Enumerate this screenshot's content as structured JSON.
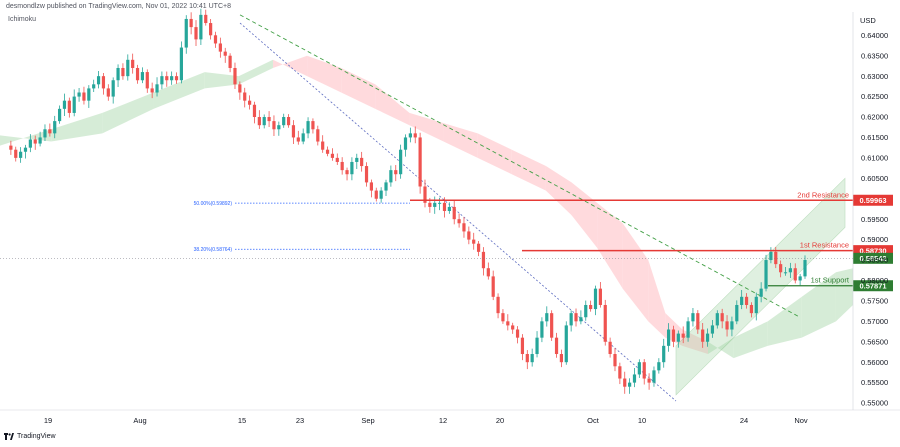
{
  "header": {
    "publisher": "desmondlzw published on TradingView.com, Nov 01, 2022 10:41 UTC+8",
    "indicator": "Ichimoku"
  },
  "footer": {
    "brand": "TradingView"
  },
  "colors": {
    "up": "#26a69a",
    "down": "#ef5350",
    "resistance": "#e53935",
    "support": "#2e7d32",
    "fib": "#2962ff",
    "cloud_bull": "#c8e6c9",
    "cloud_bear": "#ffcdd2",
    "channel": "#a5d6a7",
    "trend_green": "#43a047",
    "trend_blue": "#5c6bc0",
    "price_tag": "#2e7d32"
  },
  "chart_data": {
    "type": "candlestick",
    "symbol_currency": "USD",
    "y_axis": {
      "range": [
        0.5483,
        0.6457
      ],
      "ticks": [
        "0.64000",
        "0.63500",
        "0.63000",
        "0.62500",
        "0.62000",
        "0.61500",
        "0.61000",
        "0.60500",
        "0.59500",
        "0.59000",
        "0.58500",
        "0.58000",
        "0.57500",
        "0.57000",
        "0.56500",
        "0.56000",
        "0.55500",
        "0.55000"
      ]
    },
    "x_axis": {
      "labels": [
        "19",
        "Aug",
        "15",
        "23",
        "Sep",
        "12",
        "20",
        "Oct",
        "10",
        "24",
        "Nov"
      ]
    },
    "levels": [
      {
        "name": "2nd Resistance",
        "value": 0.59963,
        "label": "0.59963",
        "kind": "resistance"
      },
      {
        "name": "1st Resistance",
        "value": 0.5873,
        "label": "0.58730",
        "kind": "resistance"
      },
      {
        "name": "1st Support",
        "value": 0.57871,
        "label": "0.57871",
        "kind": "support"
      }
    ],
    "current_price": {
      "value": 0.58542,
      "label": "0.58542"
    },
    "fib_levels": [
      {
        "label": "50.00%(0.59892)",
        "value": 0.59892
      },
      {
        "label": "38.20%(0.58764)",
        "value": 0.58764
      }
    ],
    "price_path": [
      0.613,
      0.612,
      0.61,
      0.6115,
      0.6125,
      0.6145,
      0.6135,
      0.615,
      0.617,
      0.616,
      0.619,
      0.622,
      0.624,
      0.621,
      0.625,
      0.626,
      0.624,
      0.627,
      0.628,
      0.63,
      0.627,
      0.625,
      0.629,
      0.632,
      0.63,
      0.634,
      0.632,
      0.629,
      0.631,
      0.627,
      0.626,
      0.628,
      0.63,
      0.629,
      0.63,
      0.629,
      0.637,
      0.644,
      0.642,
      0.639,
      0.645,
      0.643,
      0.64,
      0.638,
      0.636,
      0.635,
      0.632,
      0.628,
      0.626,
      0.624,
      0.623,
      0.62,
      0.618,
      0.62,
      0.619,
      0.617,
      0.618,
      0.62,
      0.618,
      0.615,
      0.614,
      0.616,
      0.619,
      0.617,
      0.614,
      0.612,
      0.611,
      0.61,
      0.609,
      0.607,
      0.606,
      0.609,
      0.61,
      0.608,
      0.604,
      0.602,
      0.6,
      0.602,
      0.604,
      0.607,
      0.606,
      0.612,
      0.615,
      0.616,
      0.615,
      0.603,
      0.599,
      0.598,
      0.599,
      0.599,
      0.597,
      0.598,
      0.595,
      0.594,
      0.592,
      0.59,
      0.589,
      0.587,
      0.583,
      0.581,
      0.576,
      0.572,
      0.57,
      0.569,
      0.568,
      0.566,
      0.562,
      0.56,
      0.562,
      0.566,
      0.57,
      0.572,
      0.566,
      0.562,
      0.56,
      0.569,
      0.572,
      0.57,
      0.571,
      0.574,
      0.573,
      0.578,
      0.574,
      0.565,
      0.562,
      0.559,
      0.556,
      0.554,
      0.555,
      0.557,
      0.56,
      0.556,
      0.555,
      0.558,
      0.56,
      0.564,
      0.568,
      0.565,
      0.567,
      0.566,
      0.57,
      0.572,
      0.568,
      0.565,
      0.567,
      0.569,
      0.572,
      0.57,
      0.568,
      0.57,
      0.574,
      0.576,
      0.574,
      0.572,
      0.576,
      0.578,
      0.585,
      0.587,
      0.584,
      0.582,
      0.582,
      0.583,
      0.58,
      0.581,
      0.585
    ],
    "ichimoku_cloud": [
      {
        "x": 0,
        "a": 0.613,
        "b": 0.6155
      },
      {
        "x": 0.06,
        "a": 0.617,
        "b": 0.614
      },
      {
        "x": 0.12,
        "a": 0.621,
        "b": 0.616
      },
      {
        "x": 0.18,
        "a": 0.626,
        "b": 0.622
      },
      {
        "x": 0.24,
        "a": 0.631,
        "b": 0.627
      },
      {
        "x": 0.28,
        "a": 0.63,
        "b": 0.628
      },
      {
        "x": 0.32,
        "a": 0.634,
        "b": 0.632
      },
      {
        "x": 0.36,
        "a": 0.63,
        "b": 0.635
      },
      {
        "x": 0.4,
        "a": 0.626,
        "b": 0.632
      },
      {
        "x": 0.44,
        "a": 0.622,
        "b": 0.628
      },
      {
        "x": 0.48,
        "a": 0.618,
        "b": 0.621
      },
      {
        "x": 0.52,
        "a": 0.614,
        "b": 0.6185
      },
      {
        "x": 0.56,
        "a": 0.61,
        "b": 0.616
      },
      {
        "x": 0.6,
        "a": 0.606,
        "b": 0.612
      },
      {
        "x": 0.64,
        "a": 0.602,
        "b": 0.608
      },
      {
        "x": 0.67,
        "a": 0.596,
        "b": 0.604
      },
      {
        "x": 0.7,
        "a": 0.588,
        "b": 0.599
      },
      {
        "x": 0.73,
        "a": 0.578,
        "b": 0.594
      },
      {
        "x": 0.76,
        "a": 0.57,
        "b": 0.585
      },
      {
        "x": 0.78,
        "a": 0.566,
        "b": 0.572
      },
      {
        "x": 0.8,
        "a": 0.564,
        "b": 0.568
      },
      {
        "x": 0.83,
        "a": 0.562,
        "b": 0.565
      },
      {
        "x": 0.86,
        "a": 0.566,
        "b": 0.561
      },
      {
        "x": 0.9,
        "a": 0.57,
        "b": 0.564
      },
      {
        "x": 0.94,
        "a": 0.576,
        "b": 0.566
      },
      {
        "x": 0.98,
        "a": 0.582,
        "b": 0.57
      },
      {
        "x": 1.0,
        "a": 0.583,
        "b": 0.574
      }
    ]
  }
}
